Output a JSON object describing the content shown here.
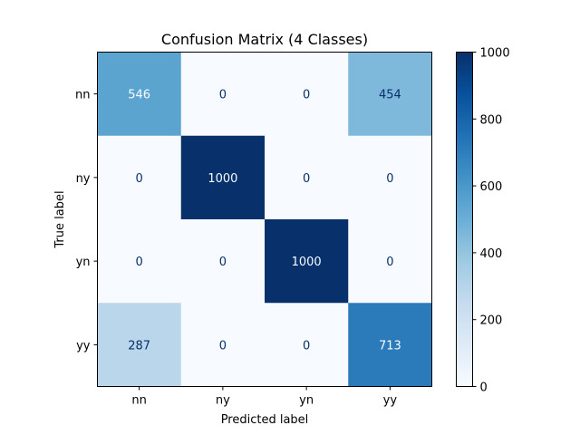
{
  "chart_data": {
    "type": "heatmap",
    "title": "Confusion Matrix (4 Classes)",
    "xlabel": "Predicted label",
    "ylabel": "True label",
    "x_categories": [
      "nn",
      "ny",
      "yn",
      "yy"
    ],
    "y_categories": [
      "nn",
      "ny",
      "yn",
      "yy"
    ],
    "values": [
      [
        546,
        0,
        0,
        454
      ],
      [
        0,
        1000,
        0,
        0
      ],
      [
        0,
        0,
        1000,
        0
      ],
      [
        287,
        0,
        0,
        713
      ]
    ],
    "colormap": "Blues",
    "color_range": [
      0,
      1000
    ],
    "colorbar_ticks": [
      0,
      200,
      400,
      600,
      800,
      1000
    ],
    "colorbar": true,
    "grid": false
  }
}
